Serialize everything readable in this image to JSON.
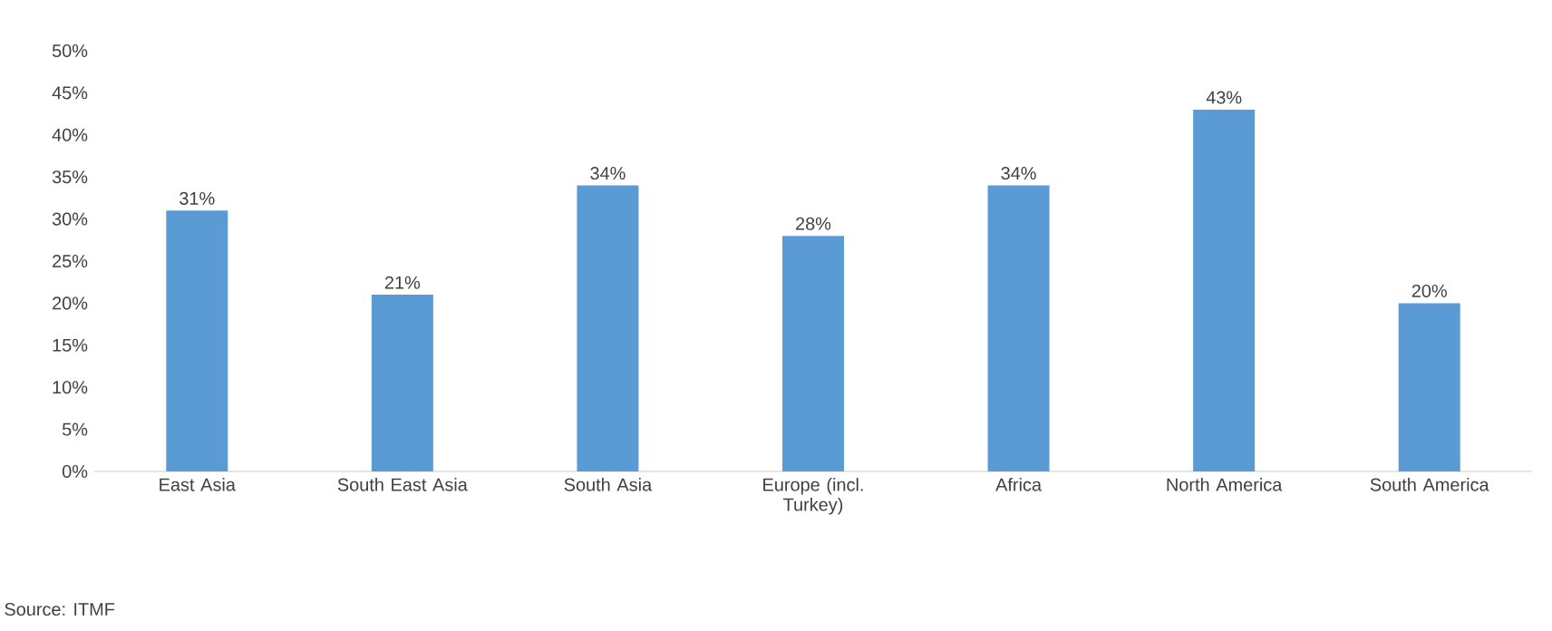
{
  "chart_data": {
    "type": "bar",
    "categories": [
      "East Asia",
      "South East Asia",
      "South Asia",
      "Europe (incl. Turkey)",
      "Africa",
      "North America",
      "South America"
    ],
    "values": [
      31,
      21,
      34,
      28,
      34,
      43,
      20
    ],
    "value_labels": [
      "31%",
      "21%",
      "34%",
      "28%",
      "34%",
      "43%",
      "20%"
    ],
    "color": "#5b9bd5",
    "ylim": [
      0,
      50
    ],
    "yticks": [
      {
        "value": 0,
        "label": "0%"
      },
      {
        "value": 5,
        "label": "5%"
      },
      {
        "value": 10,
        "label": "10%"
      },
      {
        "value": 15,
        "label": "15%"
      },
      {
        "value": 20,
        "label": "20%"
      },
      {
        "value": 25,
        "label": "25%"
      },
      {
        "value": 30,
        "label": "30%"
      },
      {
        "value": 35,
        "label": "35%"
      },
      {
        "value": 40,
        "label": "40%"
      },
      {
        "value": 45,
        "label": "45%"
      },
      {
        "value": 50,
        "label": "50%"
      }
    ],
    "annotations": [
      "Source: ITMF"
    ]
  }
}
